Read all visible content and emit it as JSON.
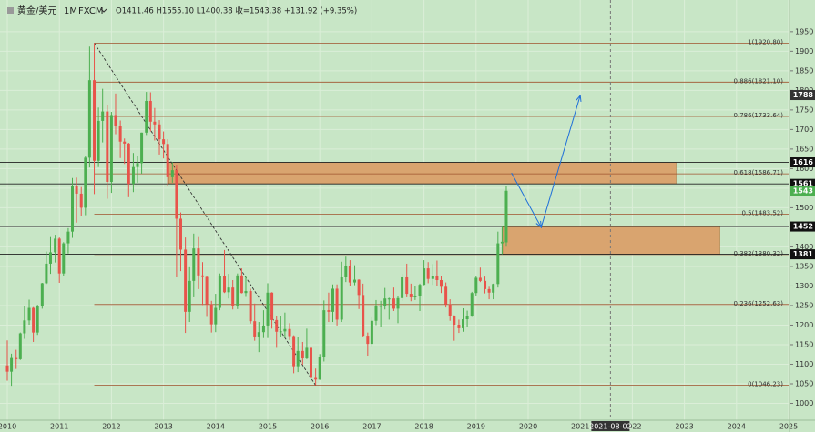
{
  "chart_data": {
    "type": "candlestick",
    "header": {
      "symbol": "黄金/美元",
      "interval": "1M",
      "source": "FXCM",
      "ohlc": "O1411.46  H1555.10  L1400.38  收=1543.38  +131.92 (+9.35%)"
    },
    "up_color": "#4caf50",
    "down_color": "#e8534a",
    "xlim": [
      2009.86,
      2025.0
    ],
    "xticks": [
      2010,
      2011,
      2012,
      2013,
      2014,
      2015,
      2016,
      2017,
      2018,
      2019,
      2020,
      2021,
      2022,
      2023,
      2024,
      2025
    ],
    "ylim": [
      957,
      2031
    ],
    "yticks": [
      1000,
      1050,
      1100,
      1150,
      1200,
      1250,
      1300,
      1350,
      1400,
      1450,
      1500,
      1550,
      1600,
      1650,
      1700,
      1750,
      1800,
      1850,
      1900,
      1950
    ],
    "grid": true,
    "x": [
      2010.0,
      2010.08,
      2010.17,
      2010.25,
      2010.33,
      2010.42,
      2010.5,
      2010.58,
      2010.67,
      2010.75,
      2010.83,
      2010.92,
      2011.0,
      2011.08,
      2011.17,
      2011.25,
      2011.33,
      2011.42,
      2011.5,
      2011.58,
      2011.67,
      2011.75,
      2011.83,
      2011.92,
      2012.0,
      2012.08,
      2012.17,
      2012.25,
      2012.33,
      2012.42,
      2012.5,
      2012.58,
      2012.67,
      2012.75,
      2012.83,
      2012.92,
      2013.0,
      2013.08,
      2013.17,
      2013.25,
      2013.33,
      2013.42,
      2013.5,
      2013.58,
      2013.67,
      2013.75,
      2013.83,
      2013.92,
      2014.0,
      2014.08,
      2014.17,
      2014.25,
      2014.33,
      2014.42,
      2014.5,
      2014.58,
      2014.67,
      2014.75,
      2014.83,
      2014.92,
      2015.0,
      2015.08,
      2015.17,
      2015.25,
      2015.33,
      2015.42,
      2015.5,
      2015.58,
      2015.67,
      2015.75,
      2015.83,
      2015.92,
      2016.0,
      2016.08,
      2016.17,
      2016.25,
      2016.33,
      2016.42,
      2016.5,
      2016.58,
      2016.67,
      2016.75,
      2016.83,
      2016.92,
      2017.0,
      2017.08,
      2017.17,
      2017.25,
      2017.33,
      2017.42,
      2017.5,
      2017.58,
      2017.67,
      2017.75,
      2017.83,
      2017.92,
      2018.0,
      2018.08,
      2018.17,
      2018.25,
      2018.33,
      2018.42,
      2018.5,
      2018.58,
      2018.67,
      2018.75,
      2018.83,
      2018.92,
      2019.0,
      2019.08,
      2019.17,
      2019.25,
      2019.33,
      2019.42,
      2019.5,
      2019.58
    ],
    "candles": [
      [
        1097,
        1161,
        1058,
        1081
      ],
      [
        1081,
        1127,
        1045,
        1116
      ],
      [
        1116,
        1137,
        1088,
        1113
      ],
      [
        1113,
        1181,
        1111,
        1179
      ],
      [
        1179,
        1249,
        1165,
        1212
      ],
      [
        1212,
        1265,
        1201,
        1244
      ],
      [
        1244,
        1246,
        1157,
        1181
      ],
      [
        1181,
        1252,
        1175,
        1248
      ],
      [
        1248,
        1308,
        1242,
        1307
      ],
      [
        1307,
        1388,
        1305,
        1357
      ],
      [
        1357,
        1425,
        1331,
        1386
      ],
      [
        1386,
        1431,
        1360,
        1421
      ],
      [
        1421,
        1424,
        1308,
        1332
      ],
      [
        1332,
        1412,
        1325,
        1409
      ],
      [
        1409,
        1448,
        1383,
        1439
      ],
      [
        1439,
        1576,
        1423,
        1556
      ],
      [
        1556,
        1577,
        1462,
        1536
      ],
      [
        1536,
        1553,
        1478,
        1500
      ],
      [
        1500,
        1632,
        1481,
        1628
      ],
      [
        1628,
        1912,
        1603,
        1826
      ],
      [
        1826,
        1920.8,
        1535,
        1620
      ],
      [
        1620,
        1756,
        1604,
        1722
      ],
      [
        1722,
        1804,
        1667,
        1746
      ],
      [
        1746,
        1763,
        1523,
        1566
      ],
      [
        1566,
        1745,
        1538,
        1737
      ],
      [
        1737,
        1792,
        1688,
        1710
      ],
      [
        1710,
        1723,
        1627,
        1669
      ],
      [
        1669,
        1677,
        1612,
        1664
      ],
      [
        1664,
        1666,
        1527,
        1561
      ],
      [
        1561,
        1640,
        1540,
        1604
      ],
      [
        1604,
        1632,
        1564,
        1614
      ],
      [
        1614,
        1692,
        1587,
        1692
      ],
      [
        1692,
        1796,
        1686,
        1773
      ],
      [
        1773,
        1795,
        1695,
        1720
      ],
      [
        1720,
        1755,
        1672,
        1713
      ],
      [
        1713,
        1724,
        1636,
        1675
      ],
      [
        1675,
        1695,
        1626,
        1663
      ],
      [
        1663,
        1675,
        1555,
        1578
      ],
      [
        1578,
        1616,
        1564,
        1596
      ],
      [
        1596,
        1610,
        1322,
        1472
      ],
      [
        1472,
        1488,
        1338,
        1393
      ],
      [
        1393,
        1424,
        1180,
        1234
      ],
      [
        1234,
        1348,
        1208,
        1313
      ],
      [
        1313,
        1434,
        1271,
        1396
      ],
      [
        1396,
        1425,
        1292,
        1327
      ],
      [
        1327,
        1361,
        1251,
        1323
      ],
      [
        1323,
        1326,
        1221,
        1253
      ],
      [
        1253,
        1262,
        1181,
        1202
      ],
      [
        1202,
        1280,
        1182,
        1244
      ],
      [
        1244,
        1332,
        1238,
        1326
      ],
      [
        1326,
        1392,
        1282,
        1284
      ],
      [
        1284,
        1331,
        1268,
        1296
      ],
      [
        1296,
        1315,
        1240,
        1250
      ],
      [
        1250,
        1332,
        1241,
        1327
      ],
      [
        1327,
        1345,
        1281,
        1282
      ],
      [
        1282,
        1324,
        1272,
        1287
      ],
      [
        1287,
        1293,
        1204,
        1210
      ],
      [
        1210,
        1255,
        1160,
        1171
      ],
      [
        1171,
        1208,
        1131,
        1182
      ],
      [
        1182,
        1238,
        1167,
        1199
      ],
      [
        1199,
        1307,
        1167,
        1283
      ],
      [
        1283,
        1284,
        1191,
        1213
      ],
      [
        1213,
        1224,
        1142,
        1183
      ],
      [
        1183,
        1224,
        1170,
        1184
      ],
      [
        1184,
        1232,
        1168,
        1190
      ],
      [
        1190,
        1205,
        1162,
        1172
      ],
      [
        1172,
        1174,
        1077,
        1095
      ],
      [
        1095,
        1170,
        1080,
        1134
      ],
      [
        1134,
        1157,
        1099,
        1115
      ],
      [
        1115,
        1191,
        1113,
        1142
      ],
      [
        1142,
        1143,
        1053,
        1065
      ],
      [
        1065,
        1089,
        1046.23,
        1061
      ],
      [
        1061,
        1126,
        1060,
        1118
      ],
      [
        1118,
        1263,
        1107,
        1238
      ],
      [
        1238,
        1283,
        1208,
        1234
      ],
      [
        1234,
        1304,
        1208,
        1293
      ],
      [
        1293,
        1304,
        1199,
        1214
      ],
      [
        1214,
        1362,
        1208,
        1322
      ],
      [
        1322,
        1375,
        1310,
        1350
      ],
      [
        1350,
        1366,
        1301,
        1309
      ],
      [
        1309,
        1353,
        1302,
        1316
      ],
      [
        1316,
        1317,
        1241,
        1277
      ],
      [
        1277,
        1306,
        1171,
        1173
      ],
      [
        1173,
        1181,
        1122,
        1152
      ],
      [
        1152,
        1220,
        1146,
        1211
      ],
      [
        1211,
        1264,
        1200,
        1249
      ],
      [
        1249,
        1262,
        1195,
        1249
      ],
      [
        1249,
        1295,
        1240,
        1268
      ],
      [
        1268,
        1270,
        1214,
        1268
      ],
      [
        1268,
        1296,
        1236,
        1242
      ],
      [
        1242,
        1275,
        1205,
        1269
      ],
      [
        1269,
        1331,
        1262,
        1322
      ],
      [
        1322,
        1357,
        1271,
        1280
      ],
      [
        1280,
        1306,
        1261,
        1271
      ],
      [
        1271,
        1299,
        1264,
        1275
      ],
      [
        1275,
        1306,
        1236,
        1303
      ],
      [
        1303,
        1366,
        1302,
        1345
      ],
      [
        1345,
        1361,
        1307,
        1318
      ],
      [
        1318,
        1356,
        1303,
        1325
      ],
      [
        1325,
        1365,
        1301,
        1315
      ],
      [
        1315,
        1326,
        1282,
        1298
      ],
      [
        1298,
        1309,
        1245,
        1253
      ],
      [
        1253,
        1266,
        1211,
        1224
      ],
      [
        1224,
        1225,
        1160,
        1201
      ],
      [
        1201,
        1214,
        1180,
        1192
      ],
      [
        1192,
        1243,
        1183,
        1215
      ],
      [
        1215,
        1237,
        1196,
        1222
      ],
      [
        1222,
        1285,
        1221,
        1282
      ],
      [
        1282,
        1326,
        1275,
        1321
      ],
      [
        1321,
        1347,
        1310,
        1313
      ],
      [
        1313,
        1324,
        1281,
        1292
      ],
      [
        1292,
        1298,
        1266,
        1283
      ],
      [
        1283,
        1306,
        1266,
        1305
      ],
      [
        1305,
        1439,
        1296,
        1409
      ],
      [
        1409,
        1453,
        1381,
        1413
      ],
      [
        1411.46,
        1555.1,
        1400.38,
        1543.38
      ]
    ],
    "fib_start": 2011.67,
    "fib_color": "#a0522d",
    "fib_levels": [
      {
        "value": 1920.8,
        "label": "1(1920.80)"
      },
      {
        "value": 1821.1,
        "label": "0.886(1821.10)"
      },
      {
        "value": 1733.64,
        "label": "0.786(1733.64)"
      },
      {
        "value": 1586.71,
        "label": "0.618(1586.71)"
      },
      {
        "value": 1483.52,
        "label": "0.5(1483.52)"
      },
      {
        "value": 1380.32,
        "label": "0.382(1380.32)"
      },
      {
        "value": 1252.63,
        "label": "0.236(1252.63)"
      },
      {
        "value": 1046.23,
        "label": "0(1046.23)"
      }
    ],
    "zones": [
      {
        "x": [
          2013.1,
          2022.84
        ],
        "y": [
          1561,
          1616
        ],
        "color": "#d9a46f"
      },
      {
        "x": [
          2019.51,
          2023.68
        ],
        "y": [
          1381,
          1452
        ],
        "color": "#d9a46f"
      }
    ],
    "levels": [
      1616,
      1561,
      1452,
      1381
    ],
    "price_labels": [
      {
        "value": 1616,
        "color": "#111111"
      },
      {
        "value": 1561,
        "color": "#111111"
      },
      {
        "value": 1543,
        "color": "#4caf50"
      },
      {
        "value": 1452,
        "color": "#111111"
      },
      {
        "value": 1381,
        "color": "#111111"
      }
    ],
    "trendline": {
      "x": [
        2011.67,
        2015.92
      ],
      "y": [
        1920.8,
        1046.23
      ]
    },
    "arrow": {
      "x": [
        2019.68,
        2020.25,
        2021.0
      ],
      "y": [
        1589,
        1450,
        1787
      ],
      "color": "#1e6fd9"
    },
    "crosshair": {
      "x": {
        "value": 2021.58,
        "label": "2021-08-02"
      },
      "y": 1788
    }
  }
}
